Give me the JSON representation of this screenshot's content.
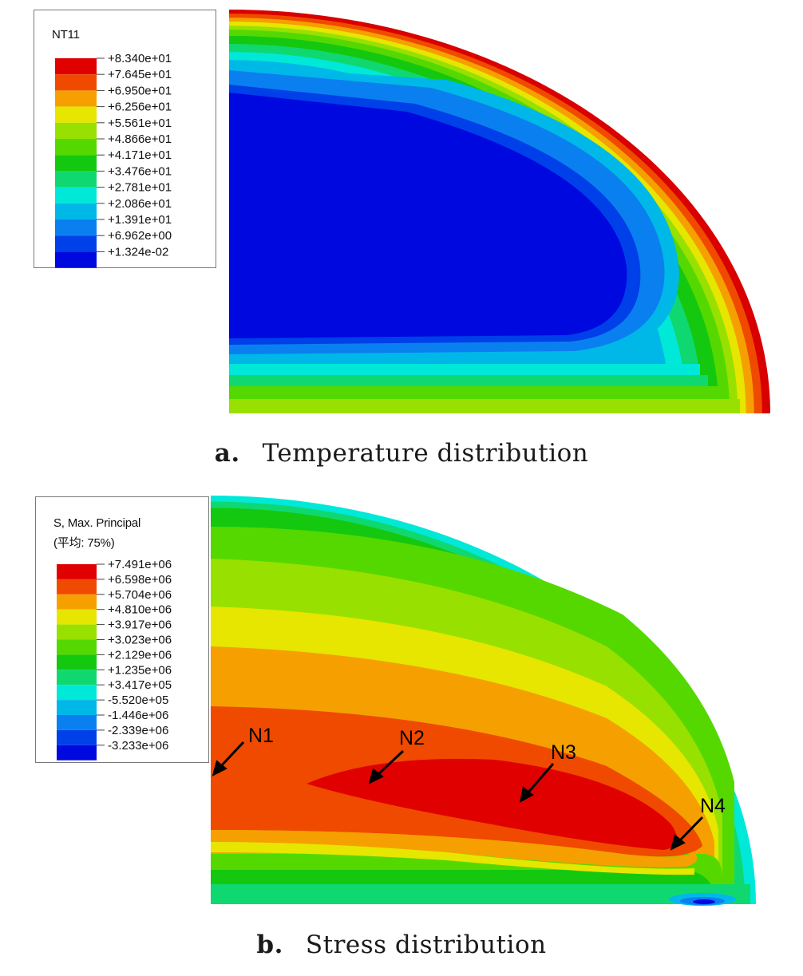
{
  "panel_a": {
    "legend": {
      "title": "NT11",
      "colors": [
        "#e00000",
        "#ef4a00",
        "#f5a000",
        "#e6e600",
        "#98e000",
        "#55d800",
        "#14c810",
        "#10d870",
        "#00e8d8",
        "#00b8e8",
        "#0a80f0",
        "#0040e8",
        "#0008e0"
      ],
      "labels": [
        "+8.340e+01",
        "+7.645e+01",
        "+6.950e+01",
        "+6.256e+01",
        "+5.561e+01",
        "+4.866e+01",
        "+4.171e+01",
        "+3.476e+01",
        "+2.781e+01",
        "+2.086e+01",
        "+1.391e+01",
        "+6.962e+00",
        "+1.324e-02"
      ]
    },
    "caption_letter": "a.",
    "caption_text": "Temperature distribution"
  },
  "panel_b": {
    "legend": {
      "title_line1": "S, Max. Principal",
      "title_line2": "(平均: 75%)",
      "colors": [
        "#e00000",
        "#ef4a00",
        "#f5a000",
        "#e6e600",
        "#98e000",
        "#55d800",
        "#14c810",
        "#10d870",
        "#00e8d8",
        "#00b8e8",
        "#0a80f0",
        "#0040e8",
        "#0008e0"
      ],
      "labels": [
        "+7.491e+06",
        "+6.598e+06",
        "+5.704e+06",
        "+4.810e+06",
        "+3.917e+06",
        "+3.023e+06",
        "+2.129e+06",
        "+1.235e+06",
        "+3.417e+05",
        "-5.520e+05",
        "-1.446e+06",
        "-2.339e+06",
        "-3.233e+06"
      ]
    },
    "nodes": [
      "N1",
      "N2",
      "N3",
      "N4"
    ],
    "caption_letter": "b.",
    "caption_text": "Stress distribution"
  }
}
